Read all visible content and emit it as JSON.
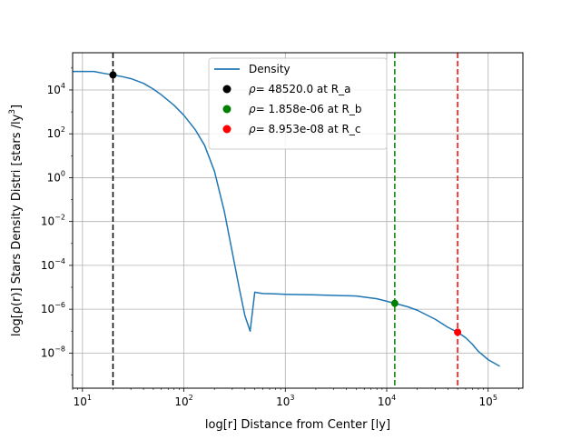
{
  "chart_data": {
    "type": "line",
    "xscale": "log",
    "yscale": "log",
    "xlim": [
      8,
      220000
    ],
    "ylim": [
      2.5e-10,
      500000.0
    ],
    "xlabel": "log[r] Distance from Center [ly]",
    "ylabel_main": "log[ρ(r)] Stars Density Distri [stars /ly",
    "ylabel_sup": "3",
    "ylabel_end": "]",
    "grid": true,
    "legend_position": "top-center",
    "x_tick_values": [
      10,
      100,
      1000,
      10000,
      100000
    ],
    "x_tick_bases": [
      "10",
      "10",
      "10",
      "10",
      "10"
    ],
    "x_tick_exps": [
      "1",
      "2",
      "3",
      "4",
      "5"
    ],
    "y_tick_values": [
      1e-08,
      1e-06,
      0.0001,
      0.01,
      1,
      100,
      10000
    ],
    "y_tick_bases": [
      "10",
      "10",
      "10",
      "10",
      "10",
      "10",
      "10"
    ],
    "y_tick_exps": [
      "−8",
      "−6",
      "−4",
      "−2",
      "0",
      "2",
      "4"
    ],
    "series": [
      {
        "name": "Density",
        "color": "#1f77b4",
        "x": [
          8,
          10,
          13,
          16,
          20,
          25,
          30,
          40,
          50,
          60,
          80,
          100,
          130,
          160,
          200,
          250,
          300,
          350,
          400,
          450,
          500,
          550,
          600,
          800,
          1000,
          2000,
          5000,
          8000,
          12000,
          16000,
          20000,
          30000,
          40000,
          50000,
          60000,
          70000,
          80000,
          100000,
          130000
        ],
        "y": [
          70000,
          70000,
          70000,
          58000,
          48520,
          40000,
          33000,
          20000,
          11000,
          6000,
          2000,
          700,
          150,
          30,
          2,
          0.03,
          0.0004,
          1e-05,
          5e-07,
          1e-07,
          6e-06,
          5.5e-06,
          5.2e-06,
          5e-06,
          4.8e-06,
          4.5e-06,
          4e-06,
          3e-06,
          1.858e-06,
          1.3e-06,
          9e-07,
          3.5e-07,
          1.5e-07,
          8.953e-08,
          5e-08,
          2.5e-08,
          1.2e-08,
          5e-09,
          2.5e-09
        ]
      }
    ],
    "markers": [
      {
        "label_rho": "ρ",
        "label_text": "= 48520.0 at R_a",
        "x": 20,
        "y": 48520,
        "color": "#000000"
      },
      {
        "label_rho": "ρ",
        "label_text": "= 1.858e-06 at R_b",
        "x": 12000,
        "y": 1.858e-06,
        "color": "#008000"
      },
      {
        "label_rho": "ρ",
        "label_text": "= 8.953e-08 at R_c",
        "x": 50000,
        "y": 8.953e-08,
        "color": "#ff0000"
      }
    ],
    "vlines": [
      {
        "x": 20,
        "color": "#000000",
        "style": "dashed"
      },
      {
        "x": 12000,
        "color": "#008000",
        "style": "dashed"
      },
      {
        "x": 50000,
        "color": "#ff0000",
        "style": "dashed"
      }
    ]
  }
}
